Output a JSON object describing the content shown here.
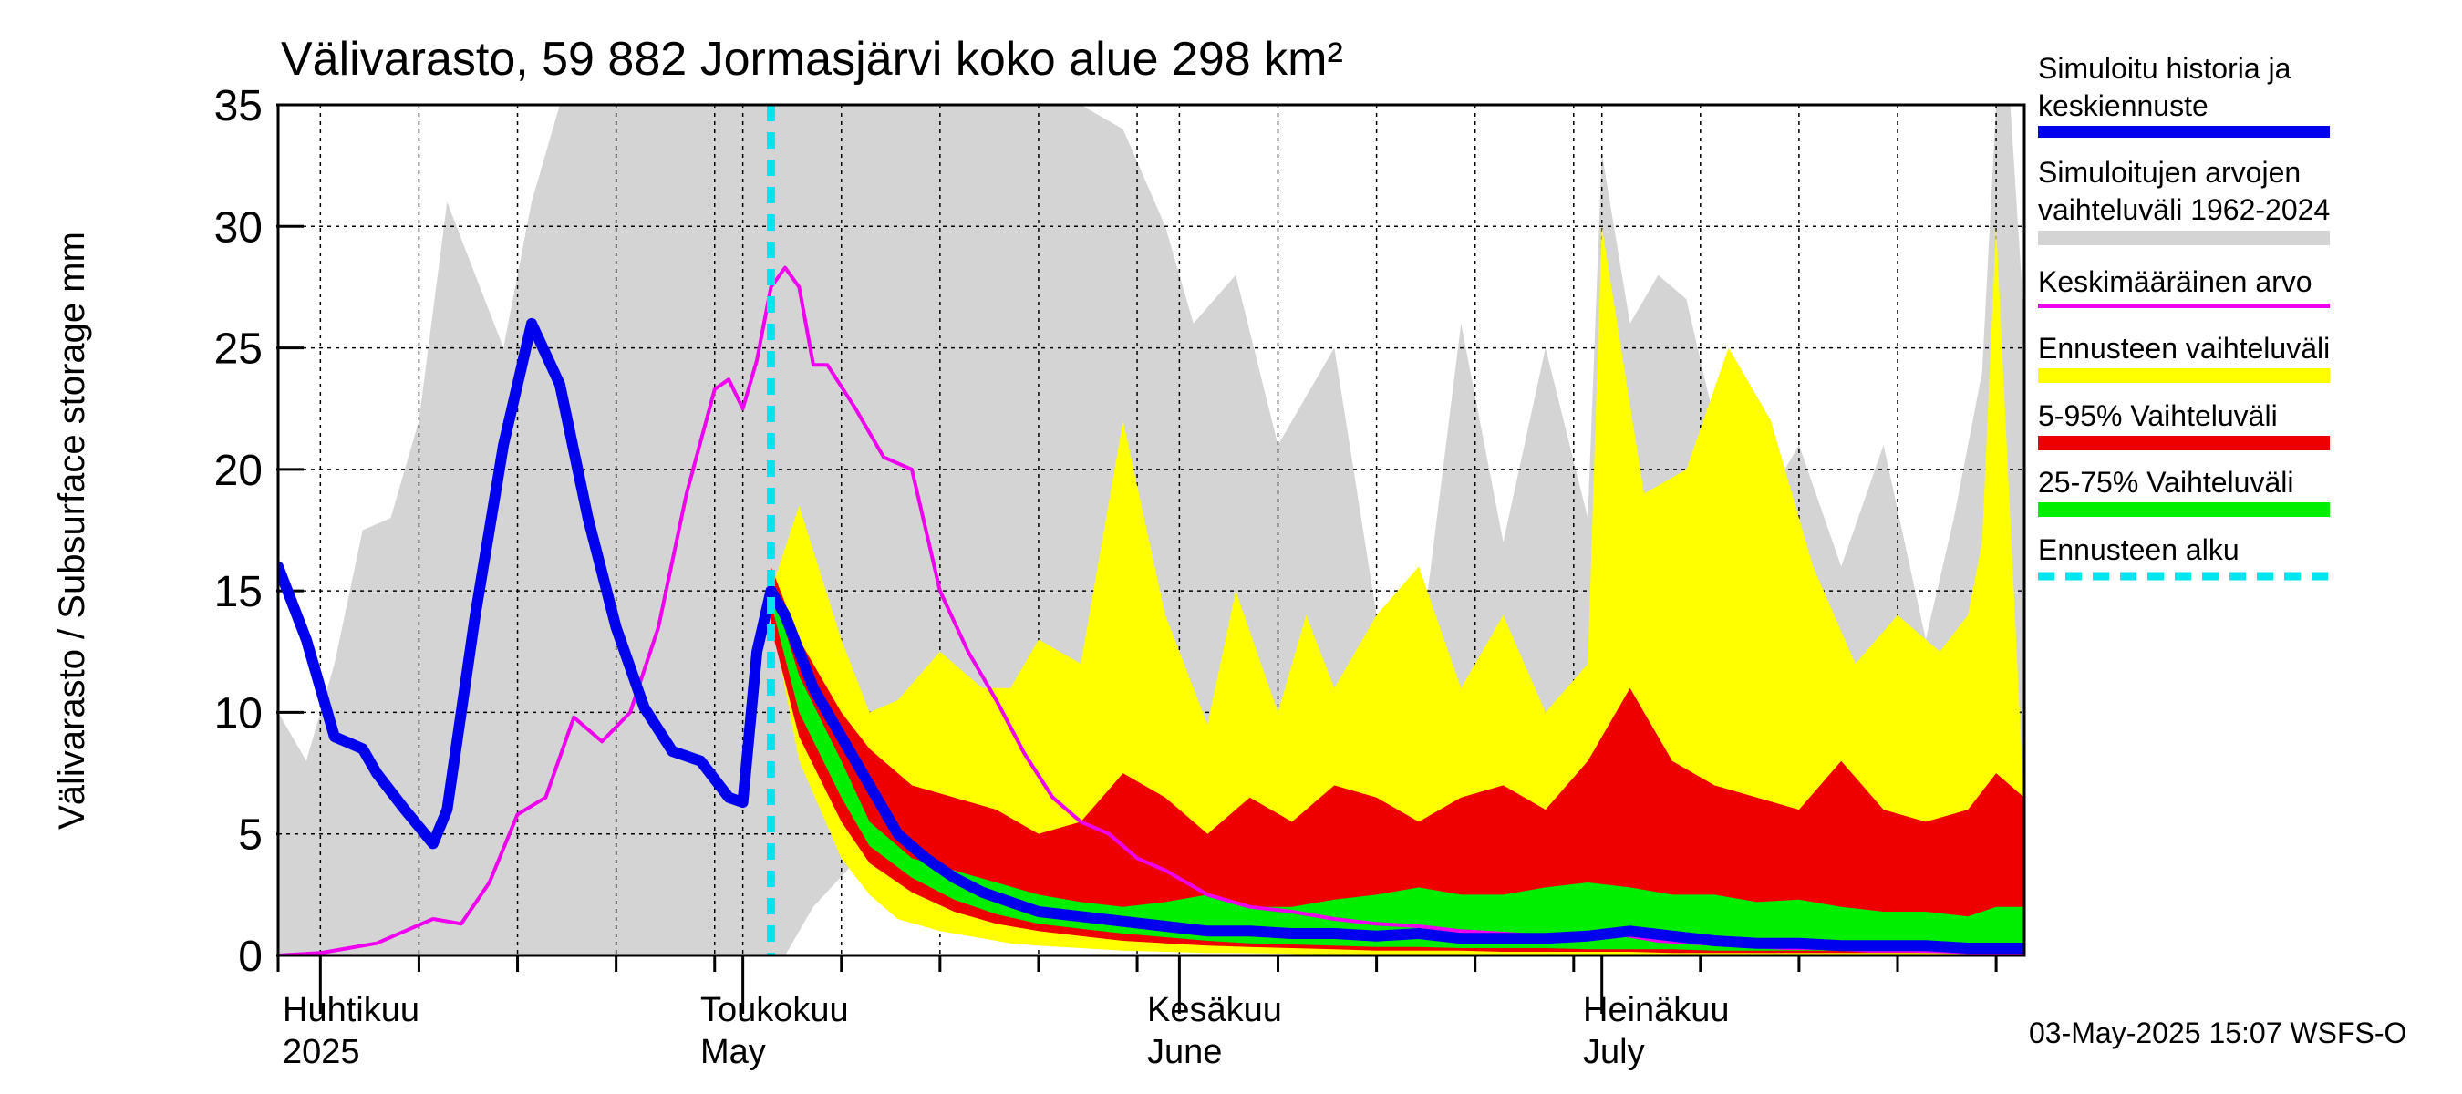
{
  "chart_data": {
    "type": "area",
    "title": "Välivarasto, 59 882 Jormasjärvi koko alue 298 km²",
    "ylabel": "Välivarasto / Subsurface storage  mm",
    "ylim": [
      0,
      35
    ],
    "yticks": [
      0,
      5,
      10,
      15,
      20,
      25,
      30,
      35
    ],
    "xlim": [
      "2025-03-29",
      "2025-07-31"
    ],
    "months": [
      {
        "date": "2025-04-01",
        "fi": "Huhtikuu",
        "en": "2025"
      },
      {
        "date": "2025-05-01",
        "fi": "Toukokuu",
        "en": "May"
      },
      {
        "date": "2025-06-01",
        "fi": "Kesäkuu",
        "en": "June"
      },
      {
        "date": "2025-07-01",
        "fi": "Heinäkuu",
        "en": "July"
      }
    ],
    "forecast_start": "2025-05-03",
    "grid": true,
    "legend_position": "right",
    "footer": "03-May-2025 15:07 WSFS-O",
    "legend": [
      {
        "label": "Simuloitu historia ja keskiennuste",
        "color": "#0000ee"
      },
      {
        "label": "Simuloitujen arvojen vaihteluväli 1962-2024",
        "color": "#d4d4d4"
      },
      {
        "label": "Keskimääräinen arvo",
        "color": "#ee00ee"
      },
      {
        "label": "Ennusteen vaihteluväli",
        "color": "#ffff00"
      },
      {
        "label": "5-95% Vaihteluväli",
        "color": "#ee0000"
      },
      {
        "label": "25-75% Vaihteluväli",
        "color": "#00ee00"
      },
      {
        "label": "Ennusteen alku",
        "color": "#00e5ee"
      }
    ],
    "history_range": {
      "name": "Simuloitujen arvojen vaihteluväli 1962-2024",
      "color": "#d4d4d4",
      "x": [
        "2025-03-29",
        "2025-03-31",
        "2025-04-02",
        "2025-04-04",
        "2025-04-06",
        "2025-04-08",
        "2025-04-10",
        "2025-04-12",
        "2025-04-14",
        "2025-04-16",
        "2025-04-18",
        "2025-04-20",
        "2025-04-22",
        "2025-04-24",
        "2025-04-26",
        "2025-04-28",
        "2025-04-30",
        "2025-05-02",
        "2025-05-04",
        "2025-05-06",
        "2025-05-10",
        "2025-05-15",
        "2025-05-20",
        "2025-05-25",
        "2025-05-28",
        "2025-05-31",
        "2025-06-02",
        "2025-06-05",
        "2025-06-08",
        "2025-06-10",
        "2025-06-12",
        "2025-06-15",
        "2025-06-18",
        "2025-06-21",
        "2025-06-24",
        "2025-06-27",
        "2025-06-30",
        "2025-07-01",
        "2025-07-03",
        "2025-07-05",
        "2025-07-07",
        "2025-07-09",
        "2025-07-11",
        "2025-07-13",
        "2025-07-15",
        "2025-07-18",
        "2025-07-21",
        "2025-07-24",
        "2025-07-26",
        "2025-07-28",
        "2025-07-29",
        "2025-07-30",
        "2025-07-31"
      ],
      "upper": [
        10,
        8,
        12,
        17.5,
        18,
        22,
        31,
        28,
        25,
        31,
        35,
        35,
        35,
        35,
        35,
        35,
        35,
        35,
        35,
        35,
        35,
        35,
        35,
        35,
        34,
        30,
        26,
        28,
        21,
        23,
        25,
        14,
        12,
        26,
        17,
        25,
        18,
        33,
        26,
        28,
        27,
        22,
        24,
        19,
        21,
        16,
        21,
        13,
        18,
        24,
        35,
        35,
        26
      ],
      "lower": [
        0,
        0,
        0,
        0,
        0,
        0,
        0,
        0,
        0,
        0,
        0,
        0,
        0,
        0,
        0,
        0,
        0,
        0,
        0,
        2,
        4.5,
        2.5,
        1,
        0.5,
        0.3,
        0.2,
        0.2,
        0.1,
        0.1,
        0.1,
        0.1,
        0.05,
        0.05,
        0.05,
        0.05,
        0,
        0,
        0,
        0,
        0,
        0,
        0,
        0,
        0,
        0,
        0,
        0,
        0,
        0,
        0,
        0,
        0,
        0
      ]
    },
    "forecast_range": {
      "name": "Ennusteen vaihteluväli",
      "color": "#ffff00",
      "x": [
        "2025-05-03",
        "2025-05-05",
        "2025-05-08",
        "2025-05-10",
        "2025-05-12",
        "2025-05-15",
        "2025-05-18",
        "2025-05-20",
        "2025-05-22",
        "2025-05-25",
        "2025-05-28",
        "2025-05-31",
        "2025-06-03",
        "2025-06-05",
        "2025-06-08",
        "2025-06-10",
        "2025-06-12",
        "2025-06-15",
        "2025-06-18",
        "2025-06-21",
        "2025-06-24",
        "2025-06-27",
        "2025-06-30",
        "2025-07-01",
        "2025-07-04",
        "2025-07-07",
        "2025-07-10",
        "2025-07-13",
        "2025-07-16",
        "2025-07-19",
        "2025-07-22",
        "2025-07-25",
        "2025-07-27",
        "2025-07-28",
        "2025-07-29",
        "2025-07-31"
      ],
      "upper": [
        15,
        18.5,
        13,
        10,
        10.5,
        12.5,
        11,
        11,
        13,
        12,
        22,
        14,
        9.5,
        15,
        10,
        14,
        11,
        14,
        16,
        11,
        14,
        10,
        12,
        30,
        19,
        20,
        25,
        22,
        16,
        12,
        14,
        12.5,
        14,
        17,
        30,
        6
      ],
      "lower": [
        14,
        8,
        4,
        2.5,
        1.5,
        1,
        0.7,
        0.5,
        0.4,
        0.3,
        0.2,
        0.15,
        0.1,
        0.1,
        0.08,
        0.05,
        0.05,
        0.05,
        0.05,
        0.05,
        0.05,
        0.05,
        0.05,
        0.05,
        0.05,
        0.05,
        0.05,
        0.05,
        0.05,
        0.05,
        0.05,
        0.05,
        0.05,
        0.05,
        0.05,
        0.05
      ]
    },
    "p5_95": {
      "name": "5-95% Vaihteluväli",
      "color": "#ee0000",
      "x": [
        "2025-05-03",
        "2025-05-05",
        "2025-05-08",
        "2025-05-10",
        "2025-05-13",
        "2025-05-16",
        "2025-05-19",
        "2025-05-22",
        "2025-05-25",
        "2025-05-28",
        "2025-05-31",
        "2025-06-03",
        "2025-06-06",
        "2025-06-09",
        "2025-06-12",
        "2025-06-15",
        "2025-06-18",
        "2025-06-21",
        "2025-06-24",
        "2025-06-27",
        "2025-06-30",
        "2025-07-03",
        "2025-07-06",
        "2025-07-09",
        "2025-07-12",
        "2025-07-15",
        "2025-07-18",
        "2025-07-21",
        "2025-07-24",
        "2025-07-27",
        "2025-07-29",
        "2025-07-31"
      ],
      "upper": [
        16,
        13,
        10,
        8.5,
        7,
        6.5,
        6,
        5,
        5.5,
        7.5,
        6.5,
        5,
        6.5,
        5.5,
        7,
        6.5,
        5.5,
        6.5,
        7,
        6,
        8,
        11,
        8,
        7,
        6.5,
        6,
        8,
        6,
        5.5,
        6,
        7.5,
        6.5
      ],
      "lower": [
        13.5,
        9,
        5.5,
        3.8,
        2.6,
        1.8,
        1.3,
        1,
        0.8,
        0.6,
        0.5,
        0.4,
        0.35,
        0.3,
        0.25,
        0.2,
        0.2,
        0.2,
        0.15,
        0.15,
        0.15,
        0.15,
        0.1,
        0.1,
        0.1,
        0.1,
        0.1,
        0.1,
        0.1,
        0.1,
        0.1,
        0.1
      ]
    },
    "p25_75": {
      "name": "25-75% Vaihteluväli",
      "color": "#00ee00",
      "x": [
        "2025-05-03",
        "2025-05-05",
        "2025-05-08",
        "2025-05-10",
        "2025-05-13",
        "2025-05-16",
        "2025-05-19",
        "2025-05-22",
        "2025-05-25",
        "2025-05-28",
        "2025-05-31",
        "2025-06-03",
        "2025-06-06",
        "2025-06-09",
        "2025-06-12",
        "2025-06-15",
        "2025-06-18",
        "2025-06-21",
        "2025-06-24",
        "2025-06-27",
        "2025-06-30",
        "2025-07-03",
        "2025-07-06",
        "2025-07-09",
        "2025-07-12",
        "2025-07-15",
        "2025-07-18",
        "2025-07-21",
        "2025-07-24",
        "2025-07-27",
        "2025-07-29",
        "2025-07-31"
      ],
      "upper": [
        15.3,
        11.5,
        8,
        5.5,
        4,
        3.5,
        3,
        2.5,
        2.2,
        2,
        2.2,
        2.5,
        2,
        2,
        2.3,
        2.5,
        2.8,
        2.5,
        2.5,
        2.8,
        3,
        2.8,
        2.5,
        2.5,
        2.2,
        2.3,
        2,
        1.8,
        1.8,
        1.6,
        2,
        2
      ],
      "lower": [
        14.5,
        10,
        6.5,
        4.5,
        3.2,
        2.3,
        1.7,
        1.3,
        1.1,
        0.9,
        0.75,
        0.6,
        0.5,
        0.45,
        0.4,
        0.35,
        0.35,
        0.3,
        0.3,
        0.3,
        0.25,
        0.25,
        0.25,
        0.2,
        0.2,
        0.2,
        0.2,
        0.2,
        0.15,
        0.15,
        0.15,
        0.15
      ]
    },
    "mean": {
      "name": "Keskimääräinen arvo",
      "color": "#ee00ee",
      "x": [
        "2025-03-29",
        "2025-04-01",
        "2025-04-03",
        "2025-04-05",
        "2025-04-07",
        "2025-04-09",
        "2025-04-11",
        "2025-04-13",
        "2025-04-15",
        "2025-04-17",
        "2025-04-19",
        "2025-04-21",
        "2025-04-23",
        "2025-04-25",
        "2025-04-27",
        "2025-04-29",
        "2025-04-30",
        "2025-05-01",
        "2025-05-02",
        "2025-05-03",
        "2025-05-04",
        "2025-05-05",
        "2025-05-06",
        "2025-05-07",
        "2025-05-09",
        "2025-05-11",
        "2025-05-13",
        "2025-05-15",
        "2025-05-17",
        "2025-05-19",
        "2025-05-21",
        "2025-05-23",
        "2025-05-25",
        "2025-05-27",
        "2025-05-29",
        "2025-05-31",
        "2025-06-03",
        "2025-06-06",
        "2025-06-09",
        "2025-06-12",
        "2025-06-15",
        "2025-06-18",
        "2025-06-21",
        "2025-06-24",
        "2025-06-27",
        "2025-06-30",
        "2025-07-02",
        "2025-07-05",
        "2025-07-08",
        "2025-07-11",
        "2025-07-14",
        "2025-07-17",
        "2025-07-20",
        "2025-07-23",
        "2025-07-26",
        "2025-07-29",
        "2025-07-31"
      ],
      "values": [
        0,
        0.1,
        0.3,
        0.5,
        1,
        1.5,
        1.3,
        3,
        5.8,
        6.5,
        9.8,
        8.8,
        10,
        13.5,
        19,
        23.3,
        23.7,
        22.5,
        24.5,
        27.5,
        28.3,
        27.5,
        24.3,
        24.3,
        22.5,
        20.5,
        20,
        15,
        12.5,
        10.5,
        8.3,
        6.5,
        5.5,
        5,
        4,
        3.5,
        2.5,
        2,
        1.8,
        1.5,
        1.3,
        1.2,
        1,
        0.9,
        0.8,
        0.8,
        0.9,
        0.6,
        0.5,
        0.4,
        0.3,
        0.3,
        0.2,
        0.2,
        0.15,
        0.1,
        0.1
      ]
    },
    "simulated": {
      "name": "Simuloitu historia ja keskiennuste",
      "color": "#0000ee",
      "x": [
        "2025-03-29",
        "2025-03-31",
        "2025-04-02",
        "2025-04-04",
        "2025-04-05",
        "2025-04-07",
        "2025-04-09",
        "2025-04-10",
        "2025-04-11",
        "2025-04-12",
        "2025-04-14",
        "2025-04-16",
        "2025-04-18",
        "2025-04-20",
        "2025-04-22",
        "2025-04-24",
        "2025-04-26",
        "2025-04-28",
        "2025-04-30",
        "2025-05-01",
        "2025-05-02",
        "2025-05-03",
        "2025-05-04",
        "2025-05-06",
        "2025-05-08",
        "2025-05-10",
        "2025-05-12",
        "2025-05-14",
        "2025-05-16",
        "2025-05-18",
        "2025-05-20",
        "2025-05-22",
        "2025-05-25",
        "2025-05-28",
        "2025-05-31",
        "2025-06-03",
        "2025-06-06",
        "2025-06-09",
        "2025-06-12",
        "2025-06-15",
        "2025-06-18",
        "2025-06-21",
        "2025-06-24",
        "2025-06-27",
        "2025-06-30",
        "2025-07-03",
        "2025-07-06",
        "2025-07-09",
        "2025-07-12",
        "2025-07-15",
        "2025-07-18",
        "2025-07-21",
        "2025-07-24",
        "2025-07-27",
        "2025-07-29",
        "2025-07-31"
      ],
      "values": [
        16,
        13,
        9,
        8.5,
        7.5,
        6,
        4.6,
        6,
        10,
        14,
        21,
        26,
        23.5,
        18,
        13.5,
        10.2,
        8.4,
        8,
        6.5,
        6.3,
        12.5,
        15,
        14,
        11,
        9,
        7,
        5,
        4,
        3.2,
        2.6,
        2.2,
        1.8,
        1.6,
        1.4,
        1.2,
        1,
        1,
        0.9,
        0.9,
        0.8,
        0.9,
        0.7,
        0.7,
        0.7,
        0.8,
        1,
        0.8,
        0.6,
        0.5,
        0.5,
        0.4,
        0.4,
        0.4,
        0.3,
        0.3,
        0.3
      ]
    }
  }
}
